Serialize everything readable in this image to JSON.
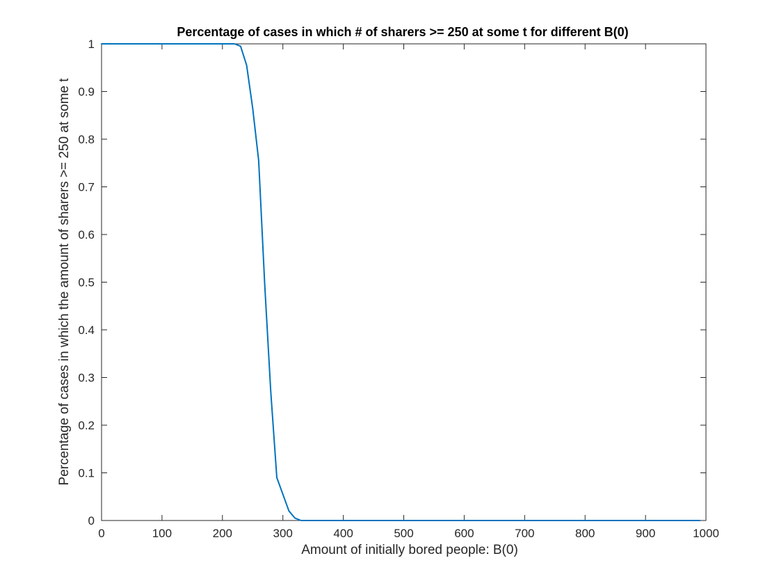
{
  "chart_data": {
    "type": "line",
    "title": "Percentage of cases in which # of sharers >= 250 at some t for different B(0)",
    "xlabel": "Amount of initially bored people: B(0)",
    "ylabel": "Percentage of cases in which the amount of sharers >= 250 at some t",
    "xlim": [
      0,
      1000
    ],
    "ylim": [
      0,
      1
    ],
    "xticks": [
      0,
      100,
      200,
      300,
      400,
      500,
      600,
      700,
      800,
      900,
      1000
    ],
    "yticks": [
      0,
      0.1,
      0.2,
      0.3,
      0.4,
      0.5,
      0.6,
      0.7,
      0.8,
      0.9,
      1
    ],
    "grid": false,
    "line_color": "#0072BD",
    "series": [
      {
        "x": [
          0,
          10,
          20,
          30,
          40,
          50,
          60,
          70,
          80,
          90,
          100,
          110,
          120,
          130,
          140,
          150,
          160,
          170,
          180,
          190,
          200,
          210,
          220,
          230,
          240,
          250,
          260,
          270,
          280,
          290,
          300,
          310,
          320,
          330,
          340,
          350,
          360,
          370,
          380,
          390,
          400,
          450,
          500,
          550,
          600,
          650,
          700,
          750,
          800,
          850,
          900,
          950,
          990
        ],
        "y": [
          1,
          1,
          1,
          1,
          1,
          1,
          1,
          1,
          1,
          1,
          1,
          1,
          1,
          1,
          1,
          1,
          1,
          1,
          1,
          1,
          1,
          1,
          1,
          0.995,
          0.955,
          0.865,
          0.755,
          0.495,
          0.27,
          0.09,
          0.055,
          0.02,
          0.005,
          0,
          0,
          0,
          0,
          0,
          0,
          0,
          0,
          0,
          0,
          0,
          0,
          0,
          0,
          0,
          0,
          0,
          0,
          0,
          0
        ]
      }
    ]
  }
}
